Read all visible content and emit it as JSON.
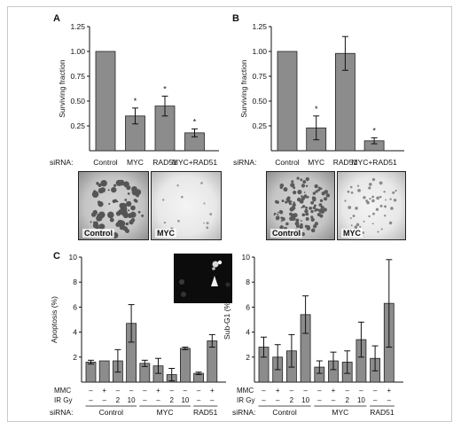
{
  "colors": {
    "bar": "#8c8c8c",
    "axis": "#111111",
    "frame": "#c8c8c8"
  },
  "panels": {
    "A": {
      "letter": "A",
      "siRNA_label": "siRNA:"
    },
    "B": {
      "letter": "B",
      "siRNA_label": "siRNA:"
    },
    "C": {
      "letter": "C"
    }
  },
  "photos": {
    "A": [
      {
        "label": "Control"
      },
      {
        "label": "MYC"
      }
    ],
    "B": [
      {
        "label": "Control"
      },
      {
        "label": "MYC"
      }
    ]
  },
  "treatment_table": {
    "row_labels": [
      "MMC",
      "IR Gy",
      "siRNA:"
    ],
    "mmc": [
      "–",
      "+",
      "–",
      "–",
      "–",
      "+",
      "–",
      "–",
      "–",
      "+"
    ],
    "ir": [
      "–",
      "–",
      "2",
      "10",
      "–",
      "–",
      "2",
      "10",
      "–",
      "–"
    ],
    "groups": [
      "Control",
      "MYC",
      "RAD51"
    ]
  },
  "chart_data": [
    {
      "id": "A",
      "type": "bar",
      "categories": [
        "Control",
        "MYC",
        "RAD51",
        "MYC+RAD51"
      ],
      "values": [
        1.0,
        0.35,
        0.45,
        0.18
      ],
      "errors": [
        0.0,
        0.08,
        0.1,
        0.04
      ],
      "significance": [
        "",
        "*",
        "*",
        "*"
      ],
      "ylabel": "Surviving fraction",
      "ylim": [
        0,
        1.25
      ],
      "yticks": [
        "0.25",
        "0.50",
        "0.75",
        "1.00",
        "1.25"
      ]
    },
    {
      "id": "B",
      "type": "bar",
      "categories": [
        "Control",
        "MYC",
        "RAD51",
        "MYC+RAD51"
      ],
      "values": [
        1.0,
        0.23,
        0.98,
        0.1
      ],
      "errors": [
        0.0,
        0.12,
        0.17,
        0.03
      ],
      "significance": [
        "",
        "*",
        "",
        "*"
      ],
      "ylabel": "Surviving fraction",
      "ylim": [
        0,
        1.25
      ],
      "yticks": [
        "0.25",
        "0.50",
        "0.75",
        "1.00",
        "1.25"
      ]
    },
    {
      "id": "C-left",
      "type": "bar",
      "values": [
        1.6,
        1.7,
        1.7,
        4.7,
        1.5,
        1.3,
        0.6,
        2.7,
        0.7,
        3.3
      ],
      "errors": [
        0.15,
        0.0,
        0.9,
        1.5,
        0.25,
        0.6,
        0.5,
        0.1,
        0.1,
        0.5
      ],
      "ylabel": "Apoptosis (%)",
      "ylim": [
        0,
        10
      ],
      "yticks": [
        "2",
        "4",
        "6",
        "8",
        "10"
      ]
    },
    {
      "id": "C-right",
      "type": "bar",
      "values": [
        2.8,
        2.0,
        2.5,
        5.4,
        1.2,
        1.7,
        1.6,
        3.4,
        1.9,
        6.3
      ],
      "errors": [
        0.8,
        1.0,
        1.3,
        1.5,
        0.5,
        0.7,
        0.9,
        1.4,
        1.0,
        3.5
      ],
      "ylabel": "Sub-G1 (%)",
      "ylim": [
        0,
        10
      ],
      "yticks": [
        "2",
        "4",
        "6",
        "8",
        "10"
      ]
    }
  ]
}
